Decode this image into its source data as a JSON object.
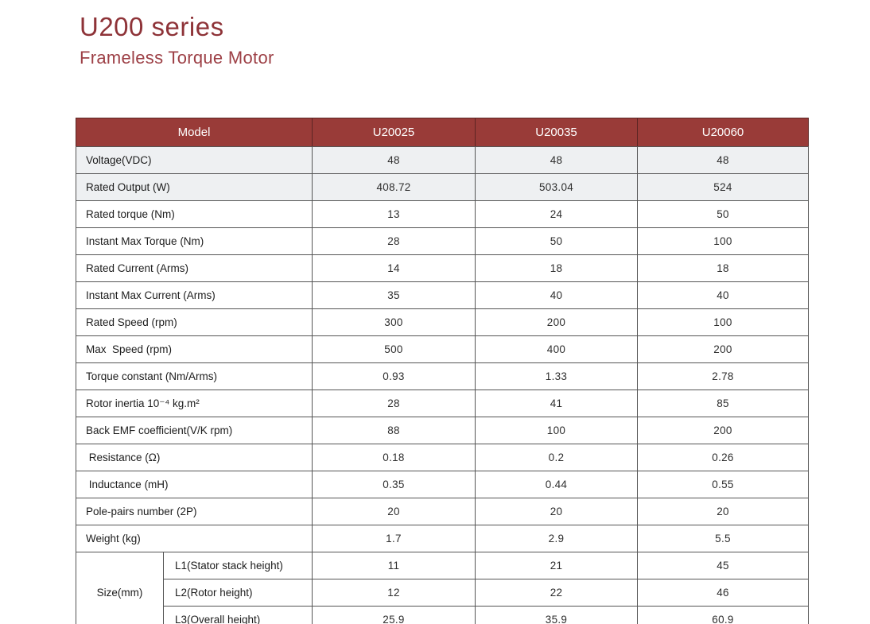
{
  "header": {
    "title": "U200 series",
    "subtitle": "Frameless Torque Motor"
  },
  "colors": {
    "header_bg": "#993b38",
    "title_red": "#8e3338",
    "subtitle_red": "#9d4046",
    "row_stripe": "#eef0f2",
    "grid_border": "#555555",
    "outer_border": "#8a9094"
  },
  "table": {
    "header": {
      "model_label": "Model",
      "columns": [
        "U20025",
        "U20035",
        "U20060"
      ]
    },
    "rows": [
      {
        "label": "Voltage(VDC)",
        "values": [
          "48",
          "48",
          "48"
        ],
        "shaded": true
      },
      {
        "label": "Rated Output (W)",
        "values": [
          "408.72",
          "503.04",
          "524"
        ],
        "shaded": true
      },
      {
        "label": "Rated torque (Nm)",
        "values": [
          "13",
          "24",
          "50"
        ],
        "shaded": false
      },
      {
        "label": "Instant Max Torque (Nm)",
        "values": [
          "28",
          "50",
          "100"
        ],
        "shaded": false
      },
      {
        "label": "Rated Current (Arms)",
        "values": [
          "14",
          "18",
          "18"
        ],
        "shaded": false
      },
      {
        "label": "Instant Max Current (Arms)",
        "values": [
          "35",
          "40",
          "40"
        ],
        "shaded": false
      },
      {
        "label": "Rated Speed (rpm)",
        "values": [
          "300",
          "200",
          "100"
        ],
        "shaded": false
      },
      {
        "label": "Max  Speed (rpm)",
        "values": [
          "500",
          "400",
          "200"
        ],
        "shaded": false
      },
      {
        "label": "Torque constant (Nm/Arms)",
        "values": [
          "0.93",
          "1.33",
          "2.78"
        ],
        "shaded": false
      },
      {
        "label": "Rotor inertia 10⁻⁴ kg.m²",
        "values": [
          "28",
          "41",
          "85"
        ],
        "shaded": false
      },
      {
        "label": "Back EMF coefficient(V/K rpm)",
        "values": [
          "88",
          "100",
          "200"
        ],
        "shaded": false
      },
      {
        "label": " Resistance (Ω)",
        "values": [
          "0.18",
          "0.2",
          "0.26"
        ],
        "shaded": false
      },
      {
        "label": " Inductance (mH)",
        "values": [
          "0.35",
          "0.44",
          "0.55"
        ],
        "shaded": false
      },
      {
        "label": "Pole-pairs number (2P)",
        "values": [
          "20",
          "20",
          "20"
        ],
        "shaded": false
      },
      {
        "label": "Weight (kg)",
        "values": [
          "1.7",
          "2.9",
          "5.5"
        ],
        "shaded": false
      }
    ],
    "size_group": {
      "label": "Size(mm)",
      "rows": [
        {
          "label": "L1(Stator stack height)",
          "values": [
            "11",
            "21",
            "45"
          ]
        },
        {
          "label": "L2(Rotor height)",
          "values": [
            "12",
            "22",
            "46"
          ]
        },
        {
          "label": "L3(Overall height)",
          "values": [
            "25.9",
            "35.9",
            "60.9"
          ]
        }
      ]
    }
  }
}
